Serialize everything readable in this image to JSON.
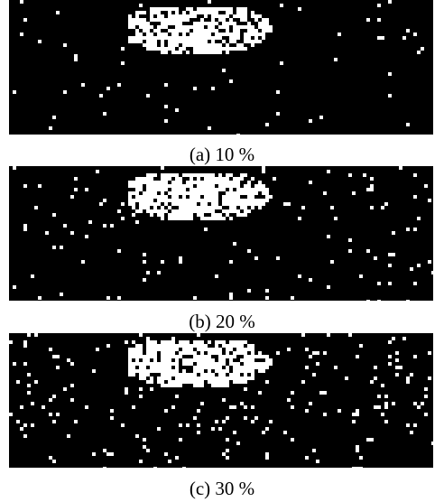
{
  "figure": {
    "panels": [
      {
        "caption": "(a) 10 %"
      },
      {
        "caption": "(b) 20 %"
      },
      {
        "caption": "(c) 30 %"
      }
    ]
  }
}
